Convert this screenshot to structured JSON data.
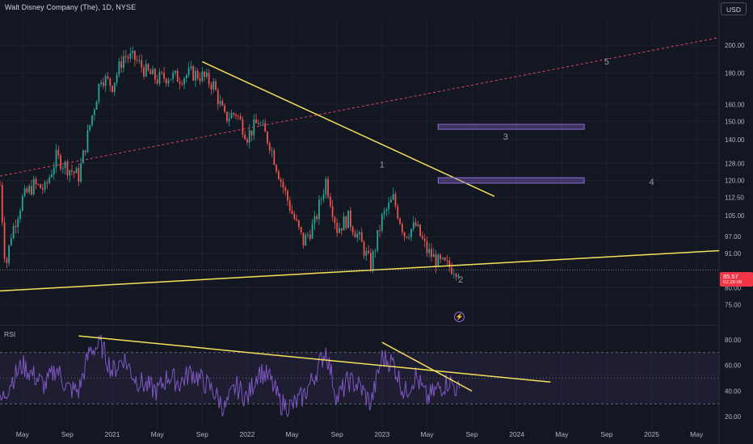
{
  "header": {
    "title": "Walt Disney Company (The), 1D, NYSE",
    "currency": "USD",
    "rsi_label": "RSI"
  },
  "last_price": {
    "value": "85.57",
    "countdown": "02:26:06",
    "color": "#f23645"
  },
  "colors": {
    "background": "#131722",
    "trendline": "#f5e25a",
    "channel": "#e0475d",
    "rsi_line": "#7e57c2",
    "zone": "#8c6bd6",
    "wave_label": "#9598a1",
    "up_candle": "#26a69a",
    "down_candle": "#ef5350"
  },
  "icons": {
    "alert": "lightning-bolt-icon"
  },
  "chart_data": [
    {
      "type": "candlestick",
      "name": "price",
      "y_scale": "log",
      "ylim": [
        70,
        222
      ],
      "y_ticks": [
        200.0,
        180.0,
        160.0,
        150.0,
        140.0,
        128.0,
        120.0,
        112.5,
        105.0,
        97.0,
        91.0,
        85.57,
        80.0,
        75.0
      ],
      "y_tick_labels": [
        "200.00",
        "180.00",
        "160.00",
        "150.00",
        "140.00",
        "128.00",
        "120.00",
        "112.50",
        "105.00",
        "97.00",
        "91.00",
        "85.57",
        "80.00",
        "75.00"
      ],
      "x_range": [
        "2020-03",
        "2025-07"
      ],
      "x_ticks": [
        {
          "date": "2020-05",
          "label": "May"
        },
        {
          "date": "2020-09",
          "label": "Sep"
        },
        {
          "date": "2021-01",
          "label": "2021"
        },
        {
          "date": "2021-05",
          "label": "May"
        },
        {
          "date": "2021-09",
          "label": "Sep"
        },
        {
          "date": "2022-01",
          "label": "2022"
        },
        {
          "date": "2022-05",
          "label": "May"
        },
        {
          "date": "2022-09",
          "label": "Sep"
        },
        {
          "date": "2023-01",
          "label": "2023"
        },
        {
          "date": "2023-05",
          "label": "May"
        },
        {
          "date": "2023-09",
          "label": "Sep"
        },
        {
          "date": "2024-01",
          "label": "2024"
        },
        {
          "date": "2024-05",
          "label": "May"
        },
        {
          "date": "2024-09",
          "label": "Sep"
        },
        {
          "date": "2025-01",
          "label": "2025"
        },
        {
          "date": "2025-05",
          "label": "May"
        }
      ],
      "price_path": [
        [
          "2020-03",
          118
        ],
        [
          "2020-03",
          86
        ],
        [
          "2020-04",
          98
        ],
        [
          "2020-05",
          112
        ],
        [
          "2020-06",
          118
        ],
        [
          "2020-07",
          116
        ],
        [
          "2020-08",
          131
        ],
        [
          "2020-09",
          126
        ],
        [
          "2020-10",
          122
        ],
        [
          "2020-11",
          148
        ],
        [
          "2020-12",
          178
        ],
        [
          "2021-01",
          172
        ],
        [
          "2021-02",
          192
        ],
        [
          "2021-03",
          190
        ],
        [
          "2021-04",
          181
        ],
        [
          "2021-05",
          176
        ],
        [
          "2021-06",
          178
        ],
        [
          "2021-07",
          177
        ],
        [
          "2021-08",
          180
        ],
        [
          "2021-09",
          178
        ],
        [
          "2021-10",
          172
        ],
        [
          "2021-11",
          152
        ],
        [
          "2021-12",
          155
        ],
        [
          "2022-01",
          142
        ],
        [
          "2022-02",
          150
        ],
        [
          "2022-03",
          138
        ],
        [
          "2022-04",
          120
        ],
        [
          "2022-05",
          106
        ],
        [
          "2022-06",
          95
        ],
        [
          "2022-07",
          102
        ],
        [
          "2022-08",
          120
        ],
        [
          "2022-09",
          100
        ],
        [
          "2022-10",
          104
        ],
        [
          "2022-11",
          96
        ],
        [
          "2022-12",
          87
        ],
        [
          "2023-01",
          104
        ],
        [
          "2023-02",
          112
        ],
        [
          "2023-03",
          98
        ],
        [
          "2023-04",
          101
        ],
        [
          "2023-05",
          92
        ],
        [
          "2023-06",
          88
        ],
        [
          "2023-07",
          86.5
        ],
        [
          "2023-08",
          85.57
        ]
      ],
      "lines": [
        {
          "kind": "trendline",
          "from": [
            "2021-09",
            188
          ],
          "to": [
            "2023-11",
            113
          ]
        },
        {
          "kind": "trendline",
          "from": [
            "2020-03",
            79
          ],
          "to": [
            "2025-07",
            92
          ]
        },
        {
          "kind": "dashed-channel",
          "from": [
            "2020-03",
            122
          ],
          "to": [
            "2025-07",
            206
          ]
        },
        {
          "kind": "price-line",
          "at": 85.57
        }
      ],
      "zones": [
        {
          "label": "3",
          "x": [
            "2023-06",
            "2024-07"
          ],
          "y": [
            146.5,
            147.5
          ]
        },
        {
          "label": "4",
          "x": [
            "2023-06",
            "2024-07"
          ],
          "y": [
            119.5,
            120.5
          ]
        }
      ],
      "wave_labels": [
        {
          "text": "1",
          "at": [
            "2023-01",
            126
          ]
        },
        {
          "text": "2",
          "at": [
            "2023-08",
            81.5
          ]
        },
        {
          "text": "3",
          "at": [
            "2023-12",
            140
          ]
        },
        {
          "text": "4",
          "at": [
            "2025-01",
            118
          ]
        },
        {
          "text": "5",
          "at": [
            "2024-09",
            186
          ]
        }
      ]
    },
    {
      "type": "line",
      "name": "RSI",
      "ylim": [
        10,
        90
      ],
      "y_ticks": [
        80,
        60,
        40,
        20
      ],
      "y_tick_labels": [
        "80.00",
        "60.00",
        "40.00",
        "20.00"
      ],
      "bands": [
        70,
        50,
        30
      ],
      "rsi_path": [
        [
          "2020-03",
          30
        ],
        [
          "2020-04",
          48
        ],
        [
          "2020-05",
          60
        ],
        [
          "2020-06",
          52
        ],
        [
          "2020-07",
          44
        ],
        [
          "2020-08",
          58
        ],
        [
          "2020-09",
          42
        ],
        [
          "2020-10",
          40
        ],
        [
          "2020-11",
          72
        ],
        [
          "2020-12",
          76
        ],
        [
          "2021-01",
          55
        ],
        [
          "2021-02",
          66
        ],
        [
          "2021-03",
          50
        ],
        [
          "2021-04",
          44
        ],
        [
          "2021-05",
          40
        ],
        [
          "2021-06",
          52
        ],
        [
          "2021-07",
          46
        ],
        [
          "2021-08",
          55
        ],
        [
          "2021-09",
          48
        ],
        [
          "2021-10",
          40
        ],
        [
          "2021-11",
          26
        ],
        [
          "2021-12",
          44
        ],
        [
          "2022-01",
          34
        ],
        [
          "2022-02",
          56
        ],
        [
          "2022-03",
          50
        ],
        [
          "2022-04",
          30
        ],
        [
          "2022-05",
          28
        ],
        [
          "2022-06",
          36
        ],
        [
          "2022-07",
          52
        ],
        [
          "2022-08",
          72
        ],
        [
          "2022-09",
          34
        ],
        [
          "2022-10",
          48
        ],
        [
          "2022-11",
          44
        ],
        [
          "2022-12",
          30
        ],
        [
          "2023-01",
          66
        ],
        [
          "2023-02",
          62
        ],
        [
          "2023-03",
          38
        ],
        [
          "2023-04",
          52
        ],
        [
          "2023-05",
          34
        ],
        [
          "2023-06",
          42
        ],
        [
          "2023-07",
          48
        ],
        [
          "2023-08",
          38
        ]
      ],
      "lines": [
        {
          "kind": "trendline",
          "from": [
            "2020-10",
            83
          ],
          "to": [
            "2024-04",
            47
          ]
        },
        {
          "kind": "trendline",
          "from": [
            "2023-01",
            78
          ],
          "to": [
            "2023-09",
            40
          ]
        }
      ]
    }
  ]
}
